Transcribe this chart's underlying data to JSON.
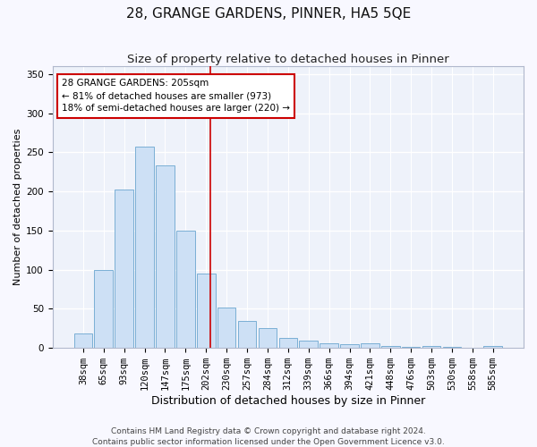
{
  "title": "28, GRANGE GARDENS, PINNER, HA5 5QE",
  "subtitle": "Size of property relative to detached houses in Pinner",
  "xlabel": "Distribution of detached houses by size in Pinner",
  "ylabel": "Number of detached properties",
  "categories": [
    "38sqm",
    "65sqm",
    "93sqm",
    "120sqm",
    "147sqm",
    "175sqm",
    "202sqm",
    "230sqm",
    "257sqm",
    "284sqm",
    "312sqm",
    "339sqm",
    "366sqm",
    "394sqm",
    "421sqm",
    "448sqm",
    "476sqm",
    "503sqm",
    "530sqm",
    "558sqm",
    "585sqm"
  ],
  "values": [
    18,
    100,
    203,
    257,
    233,
    150,
    95,
    52,
    35,
    25,
    13,
    9,
    6,
    5,
    6,
    2,
    1,
    3,
    1,
    0,
    2
  ],
  "bar_color": "#cde0f5",
  "bar_edge_color": "#7aafd4",
  "background_color": "#eef2fa",
  "grid_color": "#ffffff",
  "redline_index": 6,
  "redline_label": "28 GRANGE GARDENS: 205sqm",
  "annotation_line1": "← 81% of detached houses are smaller (973)",
  "annotation_line2": "18% of semi-detached houses are larger (220) →",
  "annotation_box_facecolor": "#ffffff",
  "annotation_box_edgecolor": "#cc0000",
  "ylim": [
    0,
    360
  ],
  "yticks": [
    0,
    50,
    100,
    150,
    200,
    250,
    300,
    350
  ],
  "footer_line1": "Contains HM Land Registry data © Crown copyright and database right 2024.",
  "footer_line2": "Contains public sector information licensed under the Open Government Licence v3.0.",
  "title_fontsize": 11,
  "subtitle_fontsize": 9.5,
  "xlabel_fontsize": 9,
  "ylabel_fontsize": 8,
  "tick_fontsize": 7.5,
  "annotation_fontsize": 7.5,
  "footer_fontsize": 6.5,
  "fig_facecolor": "#f8f8ff"
}
